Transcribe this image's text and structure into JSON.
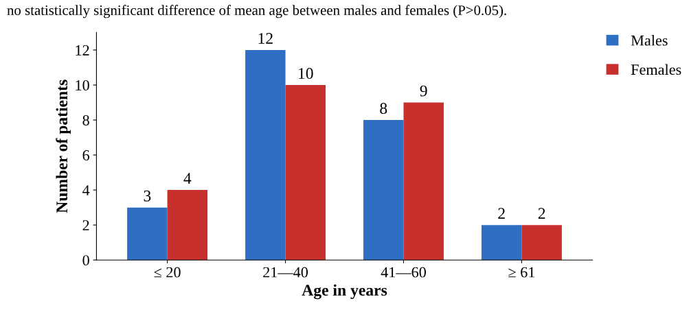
{
  "chart_data": {
    "type": "bar",
    "xlabel": "Age in years",
    "ylabel": "Number of patients",
    "categories": [
      "≤ 20",
      "21—40",
      "41—60",
      "≥ 61"
    ],
    "series": [
      {
        "name": "Males",
        "color": "#2e6fc4",
        "values": [
          3,
          12,
          8,
          2
        ]
      },
      {
        "name": "Females",
        "color": "#c8302e",
        "values": [
          4,
          10,
          9,
          2
        ]
      }
    ],
    "ylim": [
      0,
      13
    ],
    "yticks": [
      0,
      2,
      4,
      6,
      8,
      10,
      12
    ],
    "data_labels": true,
    "legend": "top right",
    "grid": false,
    "annotations": [
      "no statistically significant difference of mean age between males and females (P>0.05)."
    ]
  }
}
